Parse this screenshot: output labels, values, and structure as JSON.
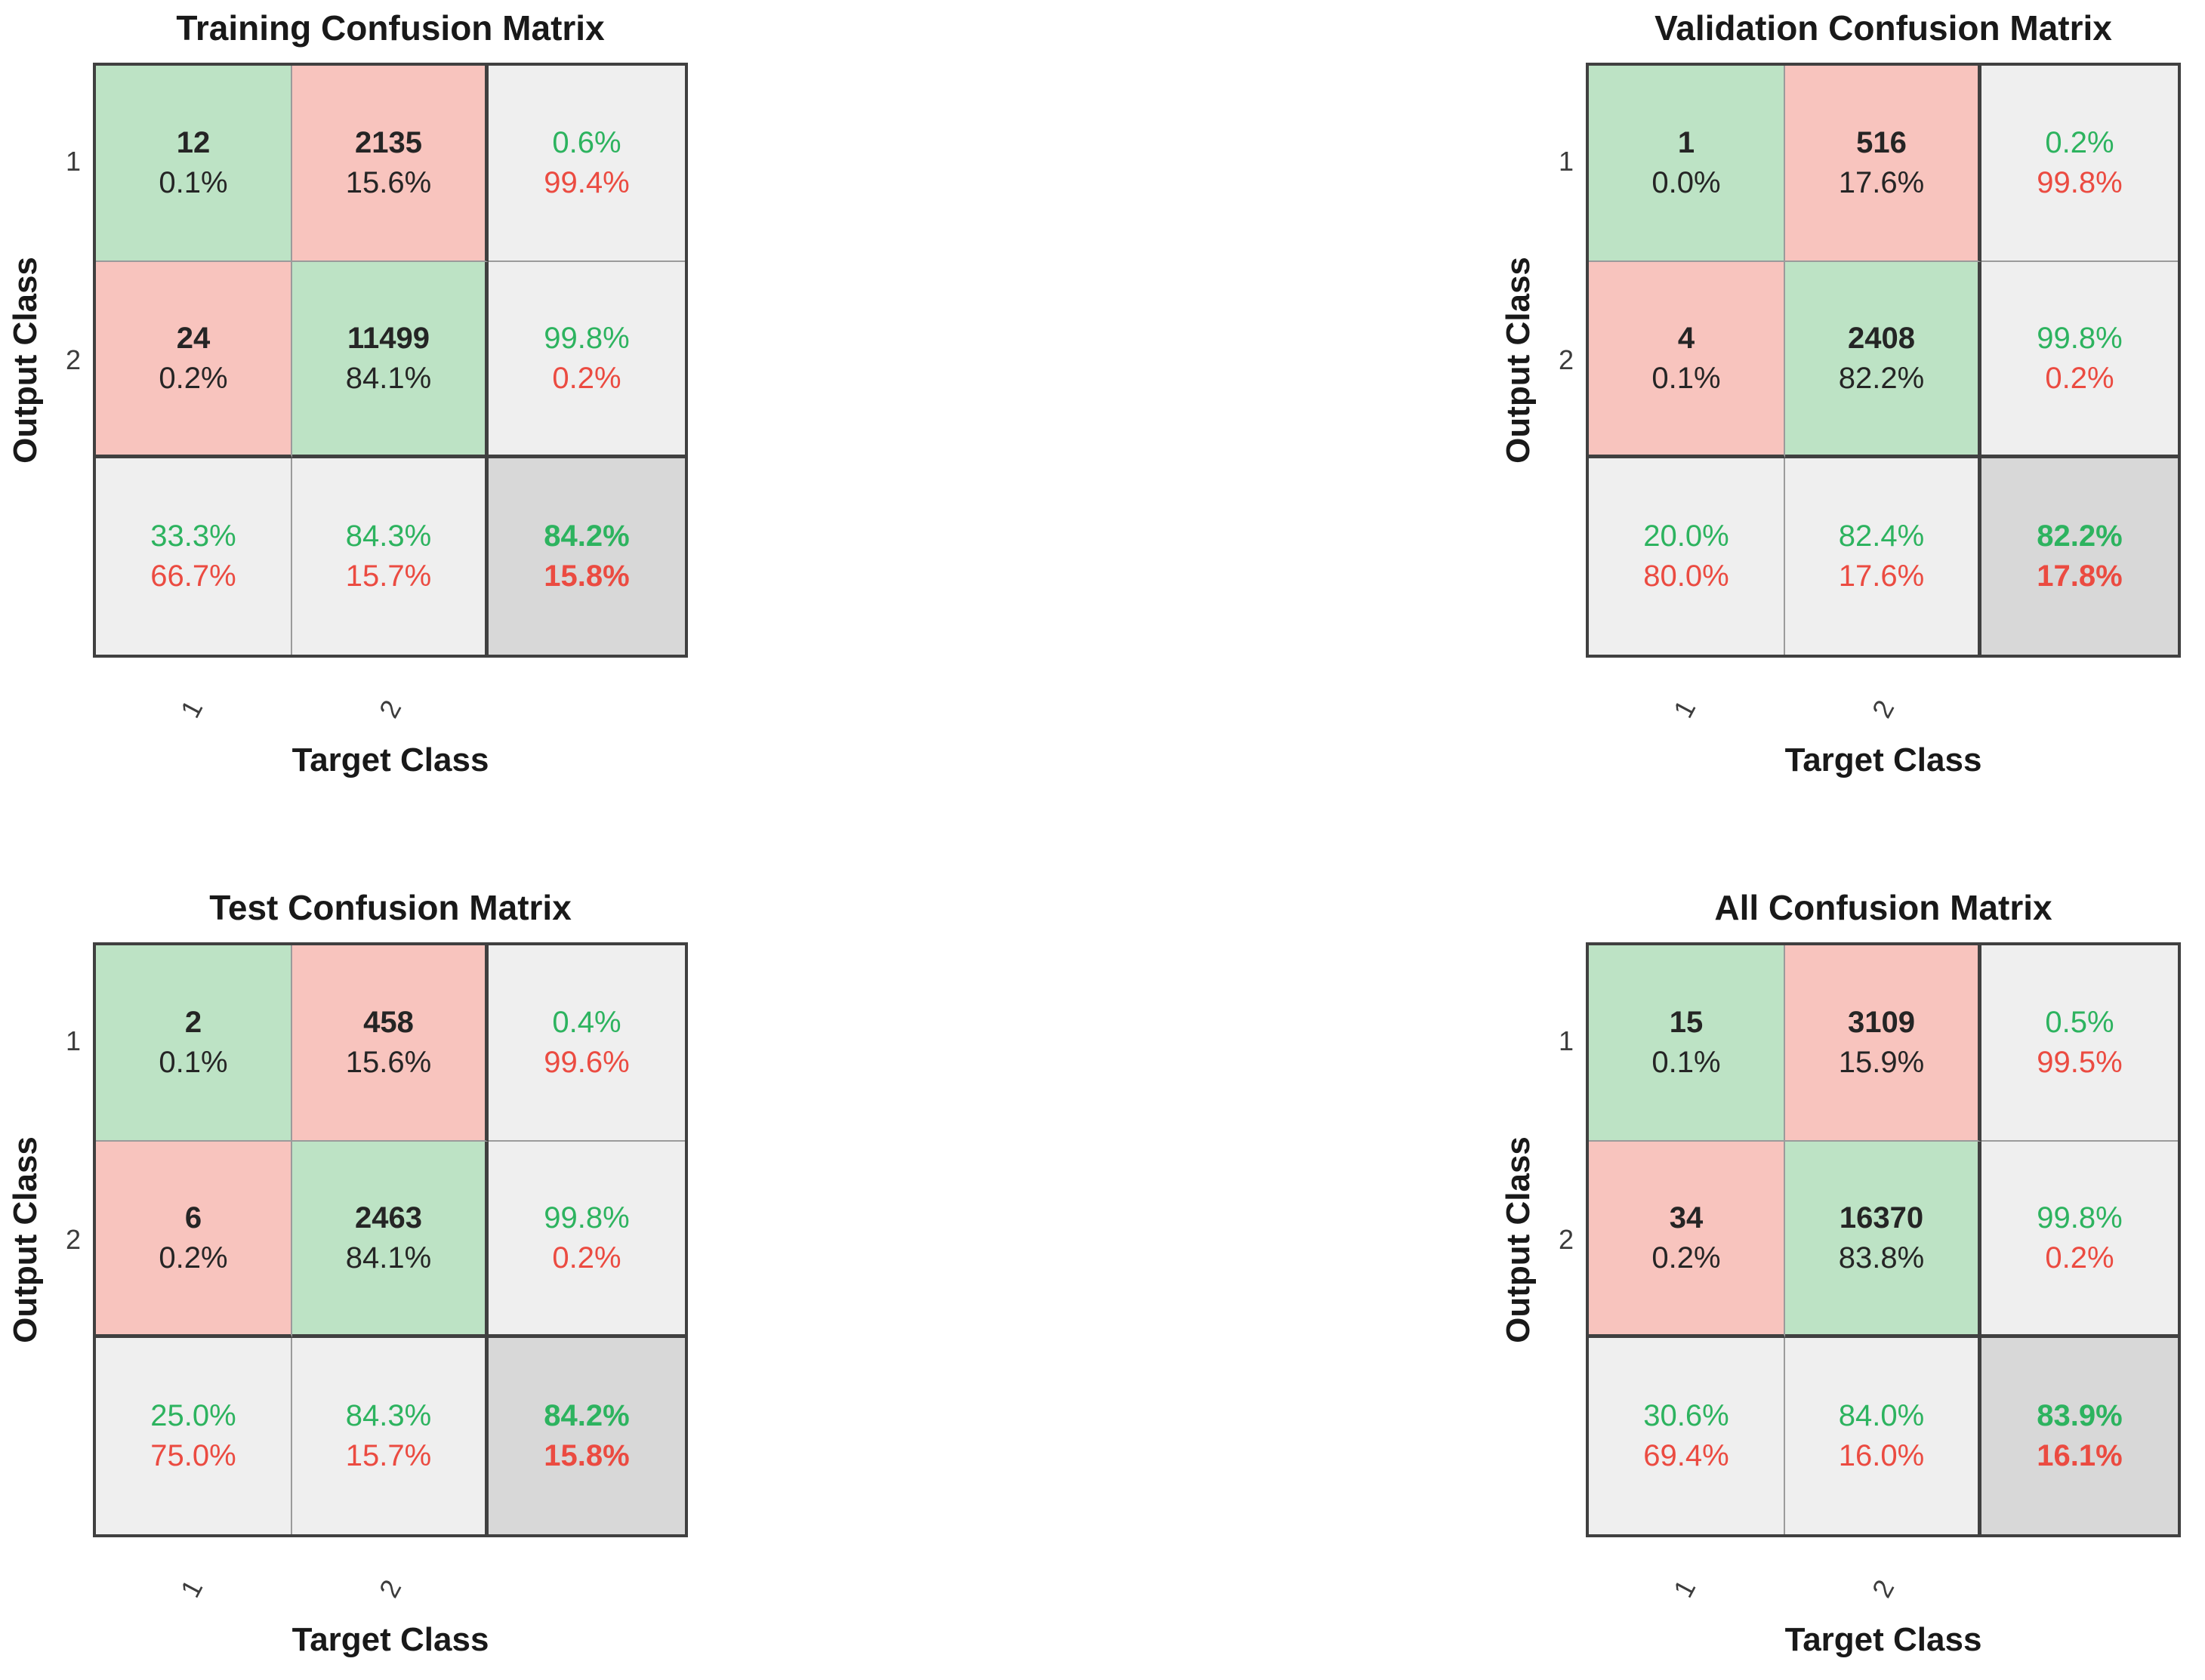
{
  "colors": {
    "diag_bg": "#BDE3C5",
    "offdiag_bg": "#F8C4BE",
    "summary_bg": "#EFEFEF",
    "total_bg": "#D8D8D8",
    "good_text": "#2DB35F",
    "bad_text": "#EB4B41",
    "count_text": "#252525",
    "border_dark": "#404040",
    "border_light": "#9B9B9B",
    "tick_text": "#3C3C3C"
  },
  "chart_data": [
    {
      "type": "heatmap",
      "title": "Training Confusion Matrix",
      "xlabel": "Target Class",
      "ylabel": "Output Class",
      "xticks": [
        "1",
        "2"
      ],
      "yticks": [
        "1",
        "2"
      ],
      "counts": [
        [
          12,
          2135
        ],
        [
          24,
          11499
        ]
      ],
      "cells": [
        [
          {
            "count": "12",
            "pct": "0.1%"
          },
          {
            "count": "2135",
            "pct": "15.6%"
          }
        ],
        [
          {
            "count": "24",
            "pct": "0.2%"
          },
          {
            "count": "11499",
            "pct": "84.1%"
          }
        ]
      ],
      "row_summary": [
        {
          "top": "0.6%",
          "bottom": "99.4%"
        },
        {
          "top": "99.8%",
          "bottom": "0.2%"
        }
      ],
      "col_summary": [
        {
          "top": "33.3%",
          "bottom": "66.7%"
        },
        {
          "top": "84.3%",
          "bottom": "15.7%"
        }
      ],
      "overall": {
        "top": "84.2%",
        "bottom": "15.8%"
      }
    },
    {
      "type": "heatmap",
      "title": "Validation Confusion Matrix",
      "xlabel": "Target Class",
      "ylabel": "Output Class",
      "xticks": [
        "1",
        "2"
      ],
      "yticks": [
        "1",
        "2"
      ],
      "counts": [
        [
          1,
          516
        ],
        [
          4,
          2408
        ]
      ],
      "cells": [
        [
          {
            "count": "1",
            "pct": "0.0%"
          },
          {
            "count": "516",
            "pct": "17.6%"
          }
        ],
        [
          {
            "count": "4",
            "pct": "0.1%"
          },
          {
            "count": "2408",
            "pct": "82.2%"
          }
        ]
      ],
      "row_summary": [
        {
          "top": "0.2%",
          "bottom": "99.8%"
        },
        {
          "top": "99.8%",
          "bottom": "0.2%"
        }
      ],
      "col_summary": [
        {
          "top": "20.0%",
          "bottom": "80.0%"
        },
        {
          "top": "82.4%",
          "bottom": "17.6%"
        }
      ],
      "overall": {
        "top": "82.2%",
        "bottom": "17.8%"
      }
    },
    {
      "type": "heatmap",
      "title": "Test Confusion Matrix",
      "xlabel": "Target Class",
      "ylabel": "Output Class",
      "xticks": [
        "1",
        "2"
      ],
      "yticks": [
        "1",
        "2"
      ],
      "counts": [
        [
          2,
          458
        ],
        [
          6,
          2463
        ]
      ],
      "cells": [
        [
          {
            "count": "2",
            "pct": "0.1%"
          },
          {
            "count": "458",
            "pct": "15.6%"
          }
        ],
        [
          {
            "count": "6",
            "pct": "0.2%"
          },
          {
            "count": "2463",
            "pct": "84.1%"
          }
        ]
      ],
      "row_summary": [
        {
          "top": "0.4%",
          "bottom": "99.6%"
        },
        {
          "top": "99.8%",
          "bottom": "0.2%"
        }
      ],
      "col_summary": [
        {
          "top": "25.0%",
          "bottom": "75.0%"
        },
        {
          "top": "84.3%",
          "bottom": "15.7%"
        }
      ],
      "overall": {
        "top": "84.2%",
        "bottom": "15.8%"
      }
    },
    {
      "type": "heatmap",
      "title": "All Confusion Matrix",
      "xlabel": "Target Class",
      "ylabel": "Output Class",
      "xticks": [
        "1",
        "2"
      ],
      "yticks": [
        "1",
        "2"
      ],
      "counts": [
        [
          15,
          3109
        ],
        [
          34,
          16370
        ]
      ],
      "cells": [
        [
          {
            "count": "15",
            "pct": "0.1%"
          },
          {
            "count": "3109",
            "pct": "15.9%"
          }
        ],
        [
          {
            "count": "34",
            "pct": "0.2%"
          },
          {
            "count": "16370",
            "pct": "83.8%"
          }
        ]
      ],
      "row_summary": [
        {
          "top": "0.5%",
          "bottom": "99.5%"
        },
        {
          "top": "99.8%",
          "bottom": "0.2%"
        }
      ],
      "col_summary": [
        {
          "top": "30.6%",
          "bottom": "69.4%"
        },
        {
          "top": "84.0%",
          "bottom": "16.0%"
        }
      ],
      "overall": {
        "top": "83.9%",
        "bottom": "16.1%"
      }
    }
  ]
}
